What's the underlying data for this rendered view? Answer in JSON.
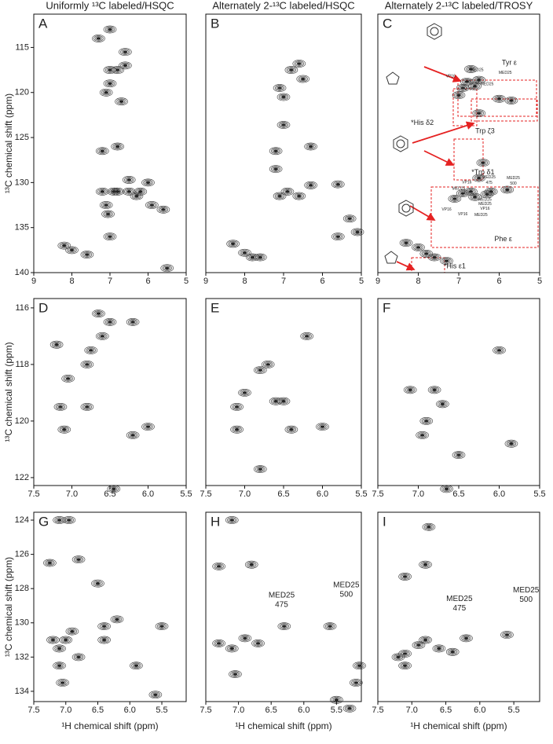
{
  "chart_data": [
    {
      "type": "contour",
      "label": "A",
      "title": "Uniformly ¹³C labeled/HSQC",
      "ylabel": "¹³C chemical shift  (ppm)",
      "xlim": [
        9,
        5
      ],
      "ylim": [
        111.3,
        140
      ],
      "xticks": [
        9,
        8,
        7,
        6,
        5
      ],
      "yticks": [
        115,
        120,
        125,
        130,
        135,
        140
      ],
      "x": [
        7.0,
        7.1,
        6.8,
        6.7,
        6.6,
        7.0,
        6.9,
        7.05,
        6.8,
        7.2,
        6.5,
        6.2,
        5.9,
        6.3,
        8.2,
        8.0,
        7.6,
        7.0,
        6.5,
        6.0,
        5.6,
        7.2,
        6.8,
        7.0,
        7.3,
        6.6,
        5.5,
        7.1
      ],
      "y": [
        117.5,
        120,
        117.5,
        121,
        117,
        119,
        131,
        133.5,
        131,
        131,
        131,
        131,
        132.5,
        131.5,
        137,
        137.5,
        138,
        136,
        129.7,
        130,
        133,
        126.5,
        126,
        113,
        114,
        115.5,
        139.5,
        132.5
      ]
    },
    {
      "type": "contour",
      "label": "B",
      "title": "Alternately 2-¹³C labeled/HSQC",
      "xlim": [
        9,
        5
      ],
      "ylim": [
        111.3,
        140
      ],
      "xticks": [
        9,
        8,
        7,
        6,
        5
      ],
      "x": [
        6.8,
        7.1,
        7.0,
        6.5,
        6.6,
        7.1,
        6.9,
        6.6,
        6.3,
        5.6,
        8.3,
        8.0,
        7.8,
        7.6,
        6.3,
        7.2,
        7.0,
        5.3,
        5.1,
        5.6,
        7.2
      ],
      "y": [
        117.5,
        119.5,
        120.5,
        118.5,
        116.8,
        131.5,
        131,
        131.5,
        130.3,
        130.2,
        136.8,
        137.8,
        138.3,
        138.3,
        126,
        128.5,
        123.6,
        134,
        135.5,
        136,
        126.5
      ]
    },
    {
      "type": "contour",
      "label": "C",
      "title": "Alternately 2-¹³C labeled/TROSY",
      "xlim": [
        9,
        5
      ],
      "ylim": [
        111.3,
        140
      ],
      "xticks": [
        9,
        8,
        7,
        6,
        5
      ],
      "x": [
        6.5,
        6.8,
        6.9,
        6.6,
        7.0,
        6.5,
        6.0,
        5.7,
        6.4,
        6.5,
        6.7,
        6.9,
        6.6,
        6.3,
        6.2,
        5.8,
        7.1,
        8.3,
        8.0,
        7.8,
        7.6,
        7.3,
        6.7
      ],
      "y": [
        118.6,
        118.8,
        119.5,
        119.3,
        120.3,
        122.3,
        120.7,
        120.9,
        127.8,
        129.5,
        131,
        131.2,
        131.6,
        131.3,
        131,
        130.8,
        131.8,
        136.7,
        137.2,
        137.9,
        138.3,
        138.7,
        117.4
      ],
      "annotations": [
        [
          "Tyr ε"
        ],
        [
          "*His δ2"
        ],
        [
          "Trp ζ3"
        ],
        [
          "*Trp δ1"
        ],
        [
          "Phe ε"
        ],
        [
          "*His ε1"
        ],
        [
          "MED25"
        ],
        [
          "MED25"
        ],
        [
          "VP16"
        ],
        [
          "MED25"
        ],
        [
          "MED25"
        ],
        [
          "VP16"
        ],
        [
          "VP16"
        ],
        [
          "MED25"
        ],
        [
          "MED25",
          "475"
        ],
        [
          "MED25",
          "500"
        ],
        [
          "VP16"
        ],
        [
          "VP16"
        ],
        [
          "MED25"
        ],
        [
          "MED25"
        ],
        [
          "MED25"
        ],
        [
          "VP16"
        ]
      ]
    },
    {
      "type": "contour",
      "label": "D",
      "ylabel": "¹³C chemical shift  (ppm)",
      "xlim": [
        7.5,
        5.5
      ],
      "ylim": [
        115.67,
        122.28
      ],
      "xticks": [
        7.5,
        {
          "value": 7,
          "label": "7.0"
        },
        6.5,
        {
          "value": 6,
          "label": "6.0"
        },
        5.5
      ],
      "yticks": [
        116,
        118,
        120,
        122
      ],
      "x": [
        7.15,
        7.1,
        7.05,
        6.8,
        6.75,
        6.8,
        6.6,
        6.5,
        6.2,
        6.45,
        6.2,
        6.0,
        7.2,
        6.65
      ],
      "y": [
        119.5,
        120.3,
        118.5,
        118,
        117.5,
        119.5,
        117,
        116.5,
        116.5,
        122.4,
        120.5,
        120.2,
        117.3,
        116.2
      ]
    },
    {
      "type": "contour",
      "label": "E",
      "xlim": [
        7.5,
        5.5
      ],
      "ylim": [
        115.67,
        122.28
      ],
      "xticks": [
        7.5,
        {
          "value": 7,
          "label": "7.0"
        },
        6.5,
        {
          "value": 6,
          "label": "6.0"
        },
        5.5
      ],
      "x": [
        7.1,
        7.1,
        7.0,
        6.8,
        6.7,
        6.6,
        6.2,
        6.0,
        6.8,
        6.5,
        6.4
      ],
      "y": [
        119.5,
        120.3,
        119,
        118.2,
        118,
        119.3,
        117,
        120.2,
        121.7,
        119.3,
        120.3
      ]
    },
    {
      "type": "contour",
      "label": "F",
      "xlim": [
        7.5,
        5.5
      ],
      "ylim": [
        115.67,
        122.28
      ],
      "xticks": [
        7.5,
        {
          "value": 7,
          "label": "7.0"
        },
        6.5,
        {
          "value": 6,
          "label": "6.0"
        },
        5.5
      ],
      "x": [
        6.8,
        6.7,
        6.9,
        6.95,
        7.1,
        6.0,
        6.5,
        5.85,
        6.65
      ],
      "y": [
        118.9,
        119.4,
        120,
        120.5,
        118.9,
        117.5,
        121.2,
        120.8,
        122.4
      ]
    },
    {
      "type": "contour",
      "label": "G",
      "ylabel": "¹³C chemical shift  (ppm)",
      "xlabel": "¹H chemical shift  (ppm)",
      "xlim": [
        7.5,
        5.12
      ],
      "ylim": [
        123.54,
        134.6
      ],
      "xticks": [
        7.5,
        {
          "value": 7,
          "label": "7.0"
        },
        6.5,
        {
          "value": 6,
          "label": "6.0"
        },
        5.5
      ],
      "yticks": [
        124,
        126,
        128,
        130,
        132,
        134
      ],
      "x": [
        7.1,
        7.0,
        7.2,
        6.9,
        7.05,
        7.25,
        7.1,
        6.95,
        6.8,
        6.5,
        6.4,
        6.4,
        6.2,
        5.9,
        5.5,
        5.6,
        7.1,
        6.8
      ],
      "y": [
        131.5,
        131,
        131,
        130.5,
        133.5,
        126.5,
        124,
        124,
        126.3,
        127.7,
        130.2,
        131,
        129.8,
        132.5,
        130.2,
        134.2,
        132.5,
        132
      ]
    },
    {
      "type": "contour",
      "label": "H",
      "xlabel": "¹H chemical shift  (ppm)",
      "xlim": [
        7.5,
        5.12
      ],
      "ylim": [
        123.54,
        134.6
      ],
      "xticks": [
        7.5,
        {
          "value": 7,
          "label": "7.0"
        },
        6.5,
        {
          "value": 6,
          "label": "6.0"
        },
        5.5
      ],
      "x": [
        7.3,
        7.1,
        6.9,
        6.7,
        6.3,
        5.6,
        7.1,
        7.3,
        6.8,
        7.05,
        5.15,
        5.2,
        5.5,
        5.3
      ],
      "y": [
        131.2,
        131.5,
        130.9,
        131.2,
        130.2,
        130.2,
        124,
        126.7,
        126.6,
        133,
        132.5,
        133.5,
        134.5,
        135
      ],
      "annotations": [
        [
          "MED25",
          "475"
        ],
        [
          "MED25",
          "500"
        ]
      ]
    },
    {
      "type": "contour",
      "label": "I",
      "xlabel": "¹H chemical shift  (ppm)",
      "xlim": [
        7.5,
        5.12
      ],
      "ylim": [
        123.54,
        134.6
      ],
      "xticks": [
        7.5,
        {
          "value": 7,
          "label": "7.0"
        },
        6.5,
        {
          "value": 6,
          "label": "6.0"
        },
        5.5
      ],
      "x": [
        7.1,
        6.9,
        6.8,
        6.6,
        6.4,
        6.2,
        5.6,
        7.1,
        6.8,
        6.75,
        7.2,
        7.1
      ],
      "y": [
        131.8,
        131.3,
        131,
        131.5,
        131.7,
        130.9,
        130.7,
        127.3,
        126.6,
        124.4,
        132,
        132.5
      ],
      "annotations": [
        [
          "MED25",
          "475"
        ],
        [
          "MED25",
          "500"
        ]
      ]
    }
  ]
}
